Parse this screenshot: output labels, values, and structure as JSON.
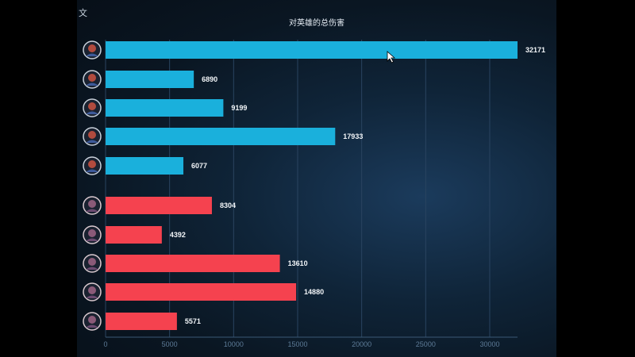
{
  "corner_label": "文",
  "colors": {
    "team_a": "#1ab0dc",
    "team_b": "#f5424f"
  },
  "chart_data": {
    "type": "bar",
    "orientation": "horizontal",
    "title": "对英雄的总伤害",
    "series": [
      {
        "values": [
          32171,
          6890,
          9199,
          17933,
          6077
        ],
        "color": "#1ab0dc"
      },
      {
        "values": [
          8304,
          4392,
          13610,
          14880,
          5571
        ],
        "color": "#f5424f"
      }
    ],
    "category_icons": [
      "hero-avatar-icon",
      "hero-avatar-icon",
      "hero-avatar-icon",
      "hero-avatar-icon",
      "hero-avatar-icon",
      "hero-avatar-icon",
      "hero-avatar-icon",
      "hero-avatar-icon",
      "hero-avatar-icon",
      "hero-avatar-icon"
    ],
    "xlim": [
      0,
      32171
    ],
    "xticks": [
      "0",
      "5000",
      "10000",
      "15000",
      "20000",
      "25000",
      "30000"
    ],
    "grid": true
  }
}
